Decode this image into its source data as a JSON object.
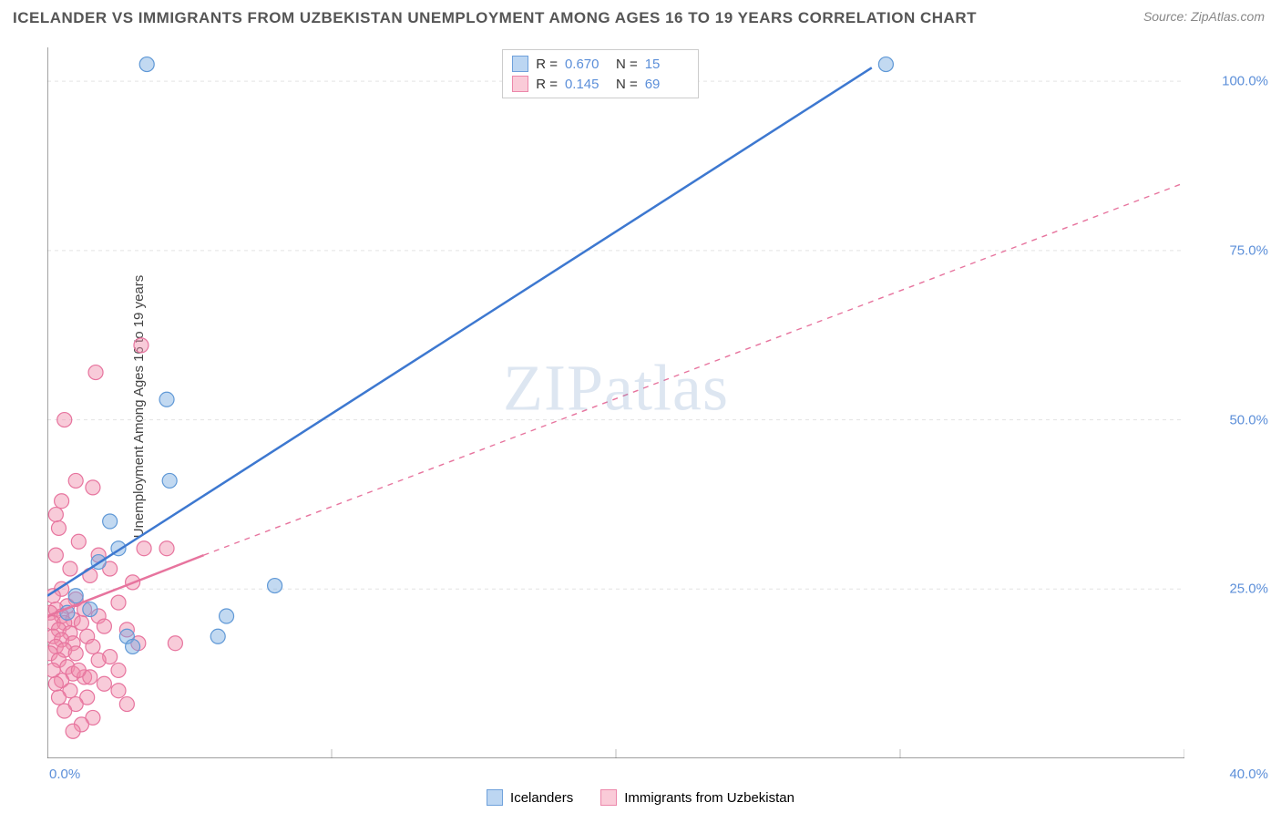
{
  "title": "ICELANDER VS IMMIGRANTS FROM UZBEKISTAN UNEMPLOYMENT AMONG AGES 16 TO 19 YEARS CORRELATION CHART",
  "source": "Source: ZipAtlas.com",
  "watermark": "ZIPatlas",
  "ylabel": "Unemployment Among Ages 16 to 19 years",
  "chart": {
    "type": "scatter-correlation",
    "background_color": "#ffffff",
    "grid_color": "#e3e3e3",
    "axis_color": "#666666",
    "axis_label_color": "#5c8fd9",
    "xlim": [
      0,
      40
    ],
    "ylim": [
      0,
      105
    ],
    "xticks": [
      0,
      10,
      20,
      30,
      40
    ],
    "xtick_labels": [
      "0.0%",
      "",
      "",
      "",
      "40.0%"
    ],
    "yticks": [
      25,
      50,
      75,
      100
    ],
    "ytick_labels": [
      "25.0%",
      "50.0%",
      "75.0%",
      "100.0%"
    ],
    "marker_radius": 8,
    "marker_stroke_width": 1.2,
    "line_width_solid": 2.5,
    "line_width_dash": 1.4,
    "dash_pattern": "6,6"
  },
  "series": [
    {
      "name": "Icelanders",
      "color_fill": "rgba(120,170,225,0.45)",
      "color_stroke": "#5f98d6",
      "swatch_fill": "#bcd6f2",
      "swatch_border": "#6ea0db",
      "R": "0.670",
      "N": "15",
      "points": [
        [
          3.5,
          102.5
        ],
        [
          29.5,
          102.5
        ],
        [
          4.2,
          53
        ],
        [
          4.3,
          41
        ],
        [
          2.2,
          35
        ],
        [
          2.5,
          31
        ],
        [
          0.7,
          21.5
        ],
        [
          2.8,
          18
        ],
        [
          6.0,
          18
        ],
        [
          1.5,
          22
        ],
        [
          8.0,
          25.5
        ],
        [
          6.3,
          21
        ],
        [
          3.0,
          16.5
        ],
        [
          1.8,
          29
        ],
        [
          1.0,
          24
        ]
      ],
      "trend_solid": {
        "x1": 0,
        "y1": 24,
        "x2": 29,
        "y2": 102
      },
      "trend_dash": null
    },
    {
      "name": "Immigrants from Uzbekistan",
      "color_fill": "rgba(240,140,170,0.45)",
      "color_stroke": "#e7749e",
      "swatch_fill": "#facbd8",
      "swatch_border": "#ec87aa",
      "R": "0.145",
      "N": "69",
      "points": [
        [
          3.3,
          61
        ],
        [
          1.7,
          57
        ],
        [
          0.6,
          50
        ],
        [
          1.0,
          41
        ],
        [
          1.6,
          40
        ],
        [
          0.5,
          38
        ],
        [
          0.3,
          36
        ],
        [
          0.4,
          34
        ],
        [
          1.1,
          32
        ],
        [
          3.4,
          31
        ],
        [
          4.2,
          31
        ],
        [
          1.8,
          30
        ],
        [
          0.3,
          30
        ],
        [
          0.8,
          28
        ],
        [
          2.2,
          28
        ],
        [
          1.5,
          27
        ],
        [
          3.0,
          26
        ],
        [
          0.5,
          25
        ],
        [
          0.2,
          24
        ],
        [
          1.0,
          23.5
        ],
        [
          2.5,
          23
        ],
        [
          0.7,
          22.5
        ],
        [
          0.3,
          22
        ],
        [
          1.3,
          22
        ],
        [
          0.1,
          21.5
        ],
        [
          0.5,
          21
        ],
        [
          1.8,
          21
        ],
        [
          0.9,
          20.5
        ],
        [
          0.2,
          20
        ],
        [
          0.6,
          20
        ],
        [
          1.2,
          20
        ],
        [
          2.0,
          19.5
        ],
        [
          0.4,
          19
        ],
        [
          2.8,
          19
        ],
        [
          0.8,
          18.5
        ],
        [
          0.2,
          18
        ],
        [
          1.4,
          18
        ],
        [
          0.5,
          17.5
        ],
        [
          3.2,
          17
        ],
        [
          0.9,
          17
        ],
        [
          0.3,
          16.5
        ],
        [
          1.6,
          16.5
        ],
        [
          0.6,
          16
        ],
        [
          0.1,
          15.5
        ],
        [
          1.0,
          15.5
        ],
        [
          2.2,
          15
        ],
        [
          0.4,
          14.5
        ],
        [
          1.8,
          14.5
        ],
        [
          4.5,
          17
        ],
        [
          0.7,
          13.5
        ],
        [
          0.2,
          13
        ],
        [
          2.5,
          13
        ],
        [
          0.9,
          12.5
        ],
        [
          1.3,
          12
        ],
        [
          1.5,
          12
        ],
        [
          0.5,
          11.5
        ],
        [
          0.3,
          11
        ],
        [
          2.0,
          11
        ],
        [
          2.5,
          10
        ],
        [
          0.8,
          10
        ],
        [
          1.4,
          9
        ],
        [
          1.0,
          8
        ],
        [
          0.6,
          7
        ],
        [
          1.6,
          6
        ],
        [
          1.2,
          5
        ],
        [
          0.9,
          4
        ],
        [
          2.8,
          8
        ],
        [
          0.4,
          9
        ],
        [
          1.1,
          13
        ]
      ],
      "trend_solid": {
        "x1": 0,
        "y1": 21,
        "x2": 5.5,
        "y2": 30
      },
      "trend_dash": {
        "x1": 5.5,
        "y1": 30,
        "x2": 40,
        "y2": 85
      }
    }
  ],
  "legend_top": {
    "rows": [
      {
        "swatch": 0,
        "r_label": "R =",
        "r_val": "0.670",
        "n_label": "N =",
        "n_val": "15"
      },
      {
        "swatch": 1,
        "r_label": "R =",
        "r_val": "0.145",
        "n_label": "N =",
        "n_val": "69"
      }
    ]
  },
  "legend_bottom": [
    {
      "swatch": 0,
      "label": "Icelanders"
    },
    {
      "swatch": 1,
      "label": "Immigrants from Uzbekistan"
    }
  ]
}
